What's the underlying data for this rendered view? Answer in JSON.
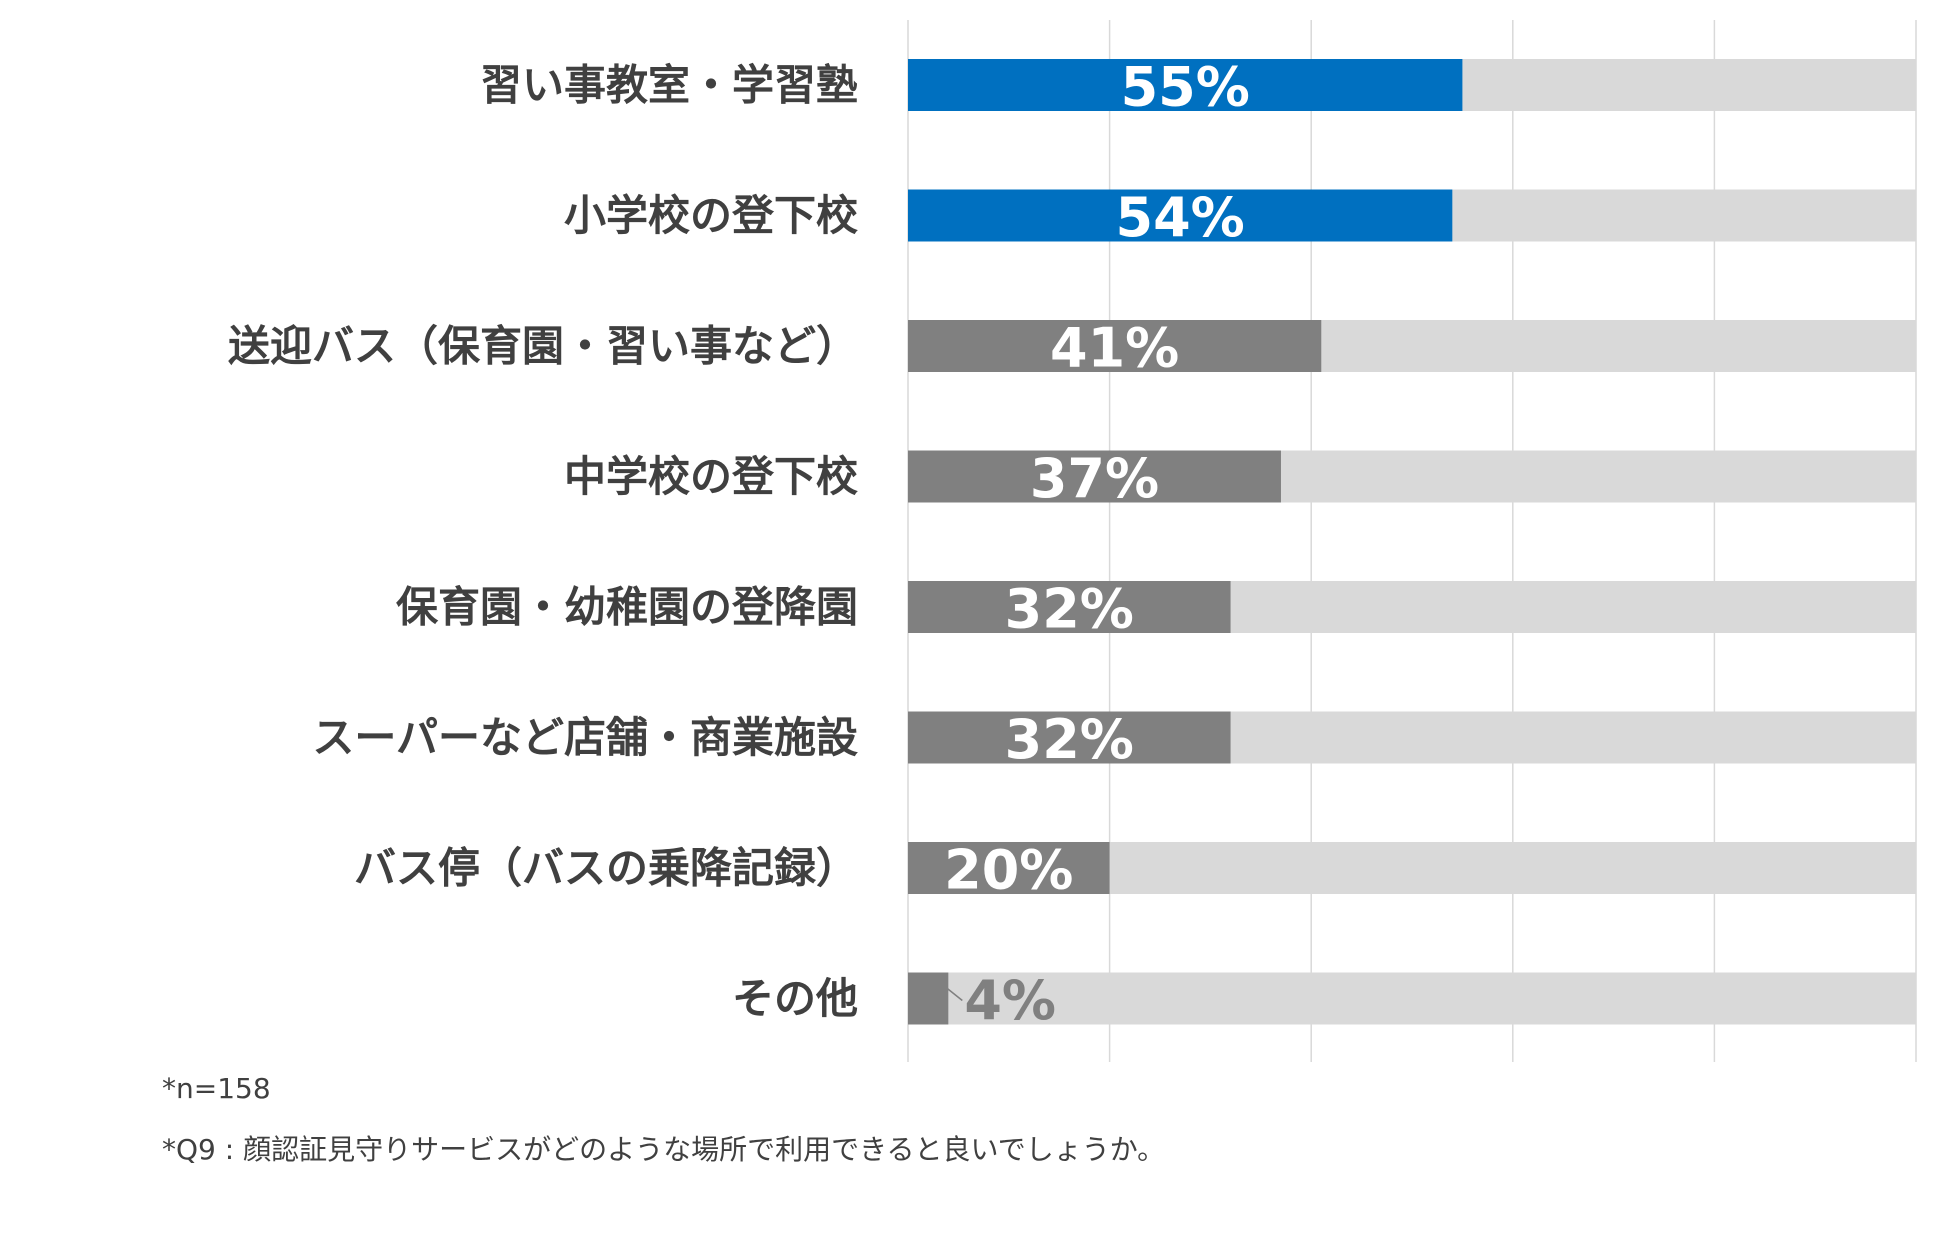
{
  "chart_data": {
    "type": "bar",
    "orientation": "horizontal",
    "stacked_with_remainder": true,
    "categories": [
      "習い事教室・学習塾",
      "小学校の登下校",
      "送迎バス（保育園・習い事など）",
      "中学校の登下校",
      "保育園・幼稚園の登降園",
      "スーパーなど店舗・商業施設",
      "バス停（バスの乗降記録）",
      "その他"
    ],
    "values": [
      55,
      54,
      41,
      37,
      32,
      32,
      20,
      4
    ],
    "value_labels": [
      "55%",
      "54%",
      "41%",
      "37%",
      "32%",
      "32%",
      "20%",
      "4%"
    ],
    "highlighted": [
      true,
      true,
      false,
      false,
      false,
      false,
      false,
      false
    ],
    "xlim": [
      0,
      100
    ],
    "grid": true,
    "title": "",
    "xlabel": "",
    "ylabel": ""
  },
  "colors": {
    "highlight_bar": "#0070C0",
    "default_bar": "#808080",
    "remainder_bar": "#D9D9D9",
    "gridline": "#D9D9D9",
    "label_text": "#404040",
    "value_text_inside": "#FFFFFF",
    "value_text_outside": "#808080"
  },
  "notes": {
    "sample": "*n=158",
    "question": "*Q9 : 顔認証見守りサービスがどのような場所で利用できると良いでしょうか。"
  }
}
